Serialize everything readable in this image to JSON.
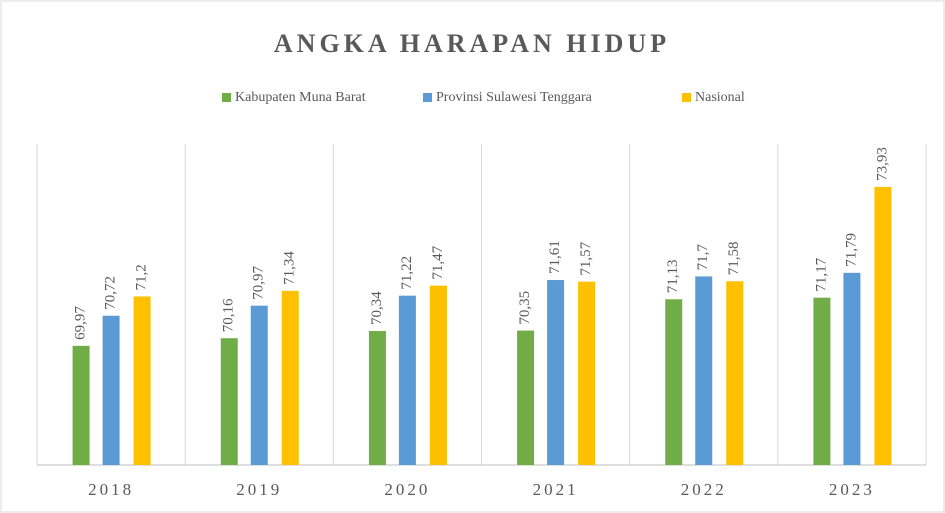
{
  "chart_data": {
    "type": "bar",
    "title": "ANGKA HARAPAN HIDUP",
    "categories": [
      "2018",
      "2019",
      "2020",
      "2021",
      "2022",
      "2023"
    ],
    "series": [
      {
        "name": "Kabupaten Muna Barat",
        "color": "#70ad47",
        "values": [
          69.97,
          70.16,
          70.34,
          70.35,
          71.13,
          71.17
        ],
        "value_labels": [
          "69,97",
          "70,16",
          "70,34",
          "70,35",
          "71,13",
          "71,17"
        ]
      },
      {
        "name": "Provinsi Sulawesi Tenggara",
        "color": "#5b9bd5",
        "values": [
          70.72,
          70.97,
          71.22,
          71.61,
          71.7,
          71.79
        ],
        "value_labels": [
          "70,72",
          "70,97",
          "71,22",
          "71,61",
          "71,7",
          "71,79"
        ]
      },
      {
        "name": "Nasional",
        "color": "#ffc000",
        "values": [
          71.2,
          71.34,
          71.47,
          71.57,
          71.58,
          73.93
        ],
        "value_labels": [
          "71,2",
          "71,34",
          "71,47",
          "71,57",
          "71,58",
          "73,93"
        ]
      }
    ],
    "ylim": [
      67,
      75
    ],
    "legend": "top"
  }
}
